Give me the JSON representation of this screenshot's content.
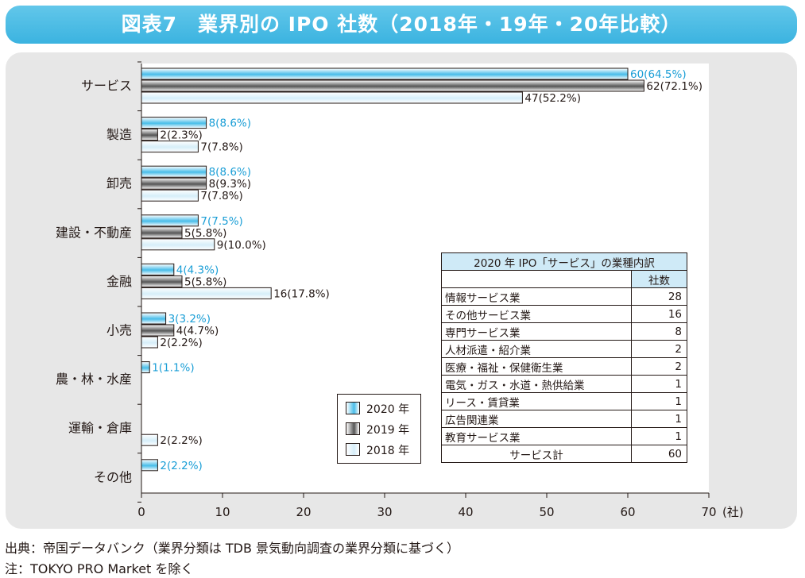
{
  "header": {
    "title": "図表7　業界別の IPO 社数（2018年・19年・20年比較）"
  },
  "footnotes": {
    "source": "出典：帝国データバンク（業界分類は TDB 景気動向調査の業界分類に基づく）",
    "note": "注：TOKYO PRO Market を除く"
  },
  "colors": {
    "s2020": "#48bde9",
    "s2019": "#555555",
    "s2018": "#ffffff",
    "label2020": "#1a9ed6",
    "banner": "#4fbde6",
    "table_header": "#cfeaf7"
  },
  "chart_data": {
    "type": "bar",
    "orientation": "horizontal",
    "categories": [
      "サービス",
      "製造",
      "卸売",
      "建設・不動産",
      "金融",
      "小売",
      "農・林・水産",
      "運輸・倉庫",
      "その他"
    ],
    "series": [
      {
        "name": "2020 年",
        "values": [
          60,
          8,
          8,
          7,
          4,
          3,
          1,
          null,
          2
        ],
        "labels": [
          "60(64.5%)",
          "8(8.6%)",
          "8(8.6%)",
          "7(7.5%)",
          "4(4.3%)",
          "3(3.2%)",
          "1(1.1%)",
          null,
          "2(2.2%)"
        ]
      },
      {
        "name": "2019 年",
        "values": [
          62,
          2,
          8,
          5,
          5,
          4,
          null,
          null,
          null
        ],
        "labels": [
          "62(72.1%)",
          "2(2.3%)",
          "8(9.3%)",
          "5(5.8%)",
          "5(5.8%)",
          "4(4.7%)",
          null,
          null,
          null
        ]
      },
      {
        "name": "2018 年",
        "values": [
          47,
          7,
          7,
          9,
          16,
          2,
          null,
          2,
          null
        ],
        "labels": [
          "47(52.2%)",
          "7(7.8%)",
          "7(7.8%)",
          "9(10.0%)",
          "16(17.8%)",
          "2(2.2%)",
          null,
          "2(2.2%)",
          null
        ]
      }
    ],
    "xlim": [
      0,
      70
    ],
    "xticks": [
      0,
      10,
      20,
      30,
      40,
      50,
      60,
      70
    ],
    "xunit": "(社)",
    "legend": "bottom-center",
    "grid": false
  },
  "breakdown_table": {
    "title": "2020 年 IPO「サービス」の業種内訳",
    "count_header": "社数",
    "rows": [
      {
        "label": "情報サービス業",
        "count": "28"
      },
      {
        "label": "その他サービス業",
        "count": "16"
      },
      {
        "label": "専門サービス業",
        "count": "8"
      },
      {
        "label": "人材派遣・紹介業",
        "count": "2"
      },
      {
        "label": "医療・福祉・保健衛生業",
        "count": "2"
      },
      {
        "label": "電気・ガス・水道・熱供給業",
        "count": "1"
      },
      {
        "label": "リース・賃貸業",
        "count": "1"
      },
      {
        "label": "広告関連業",
        "count": "1"
      },
      {
        "label": "教育サービス業",
        "count": "1"
      }
    ],
    "total_label": "サービス計",
    "total_count": "60"
  }
}
